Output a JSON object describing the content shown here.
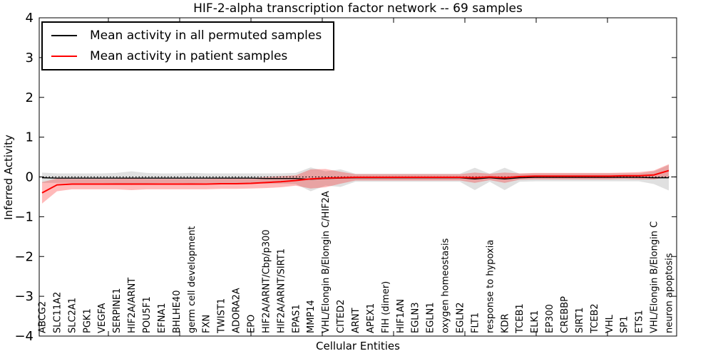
{
  "figure": {
    "title": "HIF-2-alpha transcription factor network -- 69 samples",
    "xlabel": "Cellular Entities",
    "ylabel": "Inferred Activity"
  },
  "legend": {
    "items": [
      {
        "label": "Mean activity in all permuted samples",
        "color": "#000000"
      },
      {
        "label": "Mean activity in patient samples",
        "color": "#ff0000"
      }
    ]
  },
  "chart_data": {
    "type": "line",
    "title": "HIF-2-alpha transcription factor network -- 69 samples",
    "xlabel": "Cellular Entities",
    "ylabel": "Inferred Activity",
    "ylim": [
      -4,
      4
    ],
    "yticks": [
      -4,
      -3,
      -2,
      -1,
      0,
      1,
      2,
      3,
      4
    ],
    "grid": false,
    "legend_position": "upper left",
    "zero_reference_line": {
      "y": 0,
      "style": "dotted",
      "color": "#000000"
    },
    "categories": [
      "ABCG2",
      "SLC11A2",
      "SLC2A1",
      "PGK1",
      "VEGFA",
      "SERPINE1",
      "HIF2A/ARNT",
      "POU5F1",
      "EFNA1",
      "BHLHE40",
      "germ cell development",
      "FXN",
      "TWIST1",
      "ADORA2A",
      "EPO",
      "HIF2A/ARNT/Cbp/p300",
      "HIF2A/ARNT/SIRT1",
      "EPAS1",
      "MMP14",
      "VHL/Elongin B/Elongin C/HIF2A",
      "CITED2",
      "ARNT",
      "APEX1",
      "FIH (dimer)",
      "HIF1AN",
      "EGLN3",
      "EGLN1",
      "oxygen homeostasis",
      "EGLN2",
      "FLT1",
      "response to hypoxia",
      "KDR",
      "TCEB1",
      "ELK1",
      "EP300",
      "CREBBP",
      "SIRT1",
      "TCEB2",
      "VHL",
      "SP1",
      "ETS1",
      "VHL/Elongin B/Elongin C",
      "neuron apoptosis"
    ],
    "series": [
      {
        "name": "Mean activity in all permuted samples",
        "color": "#000000",
        "line_width": 1.4,
        "band_color": "#999999",
        "band_opacity": 0.3,
        "values": [
          -0.02,
          -0.03,
          -0.03,
          -0.03,
          -0.03,
          -0.03,
          -0.03,
          -0.03,
          -0.03,
          -0.03,
          -0.03,
          -0.03,
          -0.03,
          -0.03,
          -0.03,
          -0.04,
          -0.04,
          -0.04,
          -0.06,
          -0.04,
          -0.03,
          -0.02,
          -0.02,
          -0.02,
          -0.02,
          -0.02,
          -0.02,
          -0.02,
          -0.02,
          -0.05,
          -0.02,
          -0.05,
          -0.02,
          -0.01,
          -0.01,
          -0.01,
          -0.01,
          -0.01,
          -0.01,
          -0.01,
          -0.01,
          -0.02,
          -0.02
        ],
        "band_halfwidth": [
          0.13,
          0.12,
          0.12,
          0.12,
          0.12,
          0.13,
          0.17,
          0.13,
          0.12,
          0.12,
          0.13,
          0.12,
          0.12,
          0.12,
          0.12,
          0.13,
          0.13,
          0.14,
          0.3,
          0.18,
          0.22,
          0.1,
          0.1,
          0.1,
          0.1,
          0.1,
          0.1,
          0.1,
          0.1,
          0.28,
          0.1,
          0.28,
          0.1,
          0.1,
          0.1,
          0.1,
          0.1,
          0.1,
          0.1,
          0.1,
          0.1,
          0.16,
          0.32
        ]
      },
      {
        "name": "Mean activity in patient samples",
        "color": "#ff0000",
        "line_width": 2,
        "band_color": "#ff0000",
        "band_opacity": 0.27,
        "values": [
          -0.4,
          -0.2,
          -0.18,
          -0.18,
          -0.18,
          -0.18,
          -0.18,
          -0.18,
          -0.18,
          -0.18,
          -0.18,
          -0.18,
          -0.17,
          -0.17,
          -0.16,
          -0.14,
          -0.12,
          -0.09,
          -0.05,
          -0.03,
          -0.02,
          -0.01,
          -0.01,
          -0.01,
          -0.01,
          -0.01,
          -0.01,
          -0.01,
          -0.01,
          -0.02,
          0.0,
          -0.02,
          0.01,
          0.02,
          0.02,
          0.02,
          0.02,
          0.02,
          0.02,
          0.03,
          0.03,
          0.05,
          0.16
        ],
        "band_halfwidth": [
          0.27,
          0.16,
          0.13,
          0.13,
          0.13,
          0.13,
          0.15,
          0.13,
          0.13,
          0.13,
          0.13,
          0.13,
          0.13,
          0.13,
          0.13,
          0.14,
          0.14,
          0.13,
          0.24,
          0.23,
          0.15,
          0.08,
          0.08,
          0.08,
          0.08,
          0.08,
          0.08,
          0.08,
          0.08,
          0.13,
          0.08,
          0.13,
          0.08,
          0.08,
          0.08,
          0.08,
          0.08,
          0.08,
          0.08,
          0.08,
          0.09,
          0.11,
          0.16
        ]
      }
    ]
  }
}
